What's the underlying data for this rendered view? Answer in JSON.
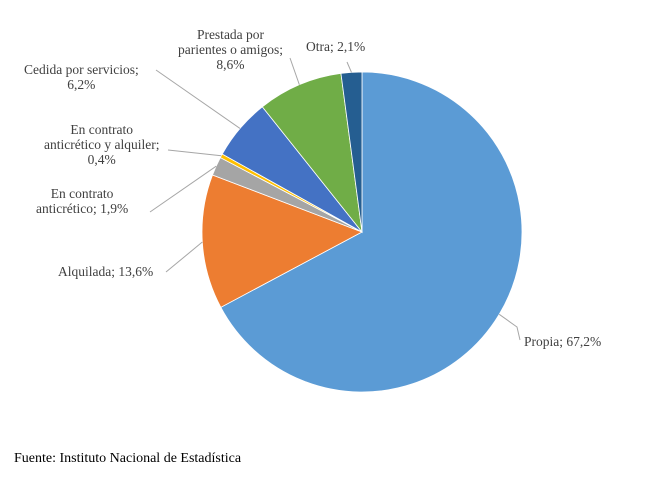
{
  "chart_data": {
    "type": "pie",
    "slices": [
      {
        "label": "Propia",
        "value": 67.2,
        "value_text": "67,2%",
        "color": "#5b9bd5"
      },
      {
        "label": "Alquilada",
        "value": 13.6,
        "value_text": "13,6%",
        "color": "#ed7d31"
      },
      {
        "label": "En contrato anticrético",
        "value": 1.9,
        "value_text": "1,9%",
        "color": "#a5a5a5"
      },
      {
        "label": "En contrato anticrético y alquiler",
        "value": 0.4,
        "value_text": "0,4%",
        "color": "#ffc000"
      },
      {
        "label": "Cedida por servicios",
        "value": 6.2,
        "value_text": "6,2%",
        "color": "#4472c4"
      },
      {
        "label": "Prestada por parientes o amigos",
        "value": 8.6,
        "value_text": "8,6%",
        "color": "#70ad47"
      },
      {
        "label": "Otra",
        "value": 2.1,
        "value_text": "2,1%",
        "color": "#255e91"
      }
    ],
    "data_labels": [
      [
        "Propia; 67,2%"
      ],
      [
        "Alquilada; 13,6%"
      ],
      [
        "En contrato",
        "anticrético; 1,9%"
      ],
      [
        "En contrato",
        "anticrético y alquiler;",
        "0,4%"
      ],
      [
        "Cedida por servicios;",
        "6,2%"
      ],
      [
        "Prestada por",
        "parientes o amigos;",
        "8,6%"
      ],
      [
        "Otra; 2,1%"
      ]
    ]
  },
  "source": "Fuente: Instituto Nacional de Estadística"
}
